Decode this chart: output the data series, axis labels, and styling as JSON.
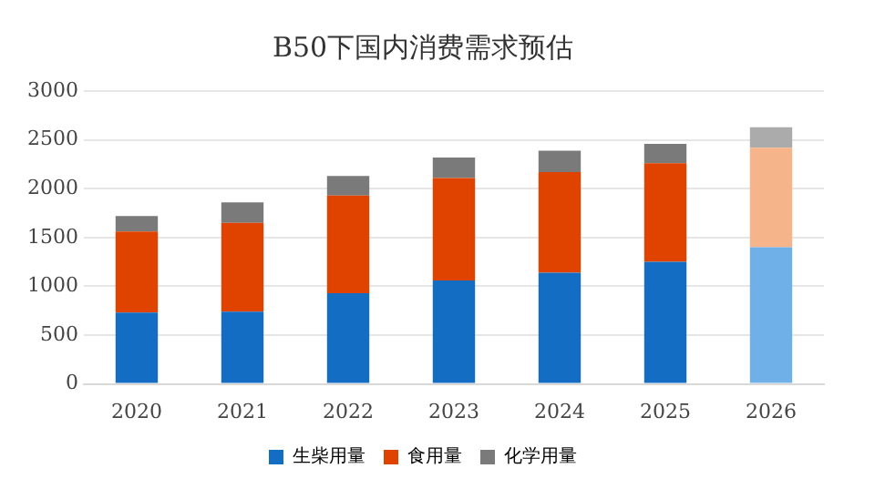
{
  "chart_data": {
    "type": "bar",
    "title": "B50下国内消费需求预估",
    "categories": [
      "2020",
      "2021",
      "2022",
      "2023",
      "2024",
      "2025",
      "2026"
    ],
    "stacked": true,
    "series": [
      {
        "name": "生柴用量",
        "color": "#136dc2",
        "colors": [
          "#136dc2",
          "#136dc2",
          "#136dc2",
          "#136dc2",
          "#136dc2",
          "#136dc2",
          "#6fb0e8"
        ],
        "values": [
          730,
          740,
          930,
          1060,
          1140,
          1250,
          1400
        ]
      },
      {
        "name": "食用量",
        "color": "#e04200",
        "colors": [
          "#e04200",
          "#e04200",
          "#e04200",
          "#e04200",
          "#e04200",
          "#e04200",
          "#f5b48a"
        ],
        "values": [
          830,
          910,
          1000,
          1050,
          1030,
          1010,
          1020
        ]
      },
      {
        "name": "化学用量",
        "color": "#7a7a7a",
        "colors": [
          "#7a7a7a",
          "#7a7a7a",
          "#7a7a7a",
          "#7a7a7a",
          "#7a7a7a",
          "#7a7a7a",
          "#ababab"
        ],
        "values": [
          160,
          210,
          200,
          210,
          220,
          200,
          210
        ]
      }
    ],
    "ylim": [
      0,
      3000
    ],
    "yticks": [
      0,
      500,
      1000,
      1500,
      2000,
      2500,
      3000
    ],
    "grid": "y",
    "legend": "bottom"
  }
}
